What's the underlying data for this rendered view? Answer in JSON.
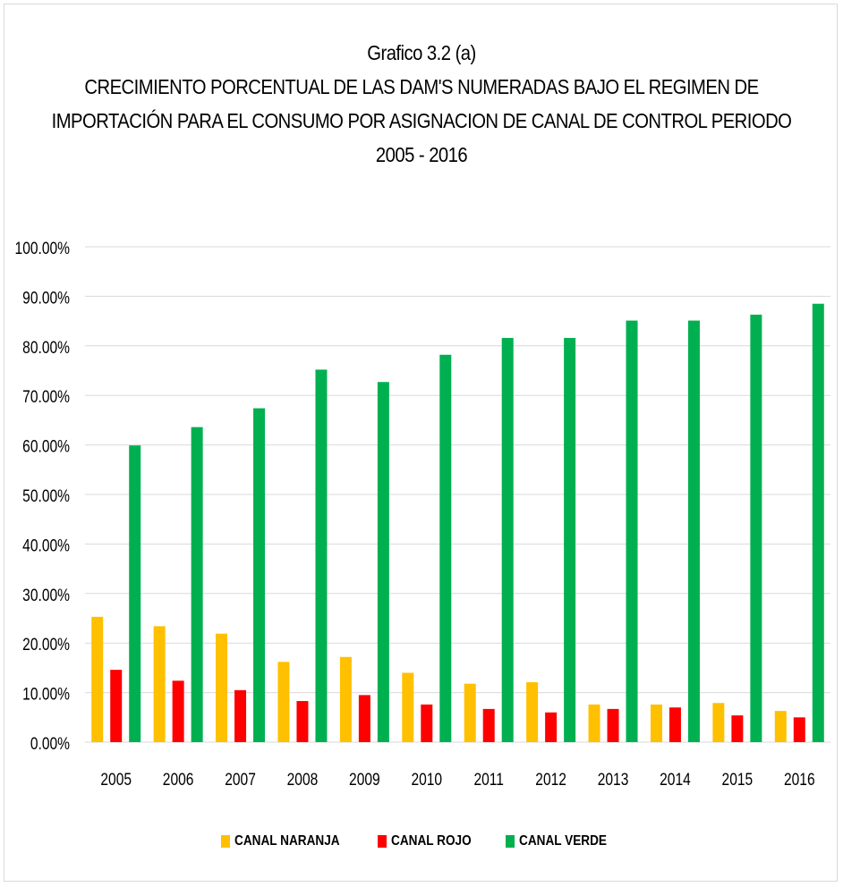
{
  "title": {
    "line1": "Grafico 3.2 (a)",
    "line2": "CRECIMIENTO PORCENTUAL DE LAS DAM'S NUMERADAS BAJO EL REGIMEN DE",
    "line3": "IMPORTACIÓN PARA EL CONSUMO POR ASIGNACION DE CANAL DE CONTROL PERIODO",
    "line4": "2005 - 2016"
  },
  "legend": {
    "position": "bottom",
    "items": [
      {
        "label": "CANAL NARANJA",
        "color": "#FFC000"
      },
      {
        "label": "CANAL ROJO",
        "color": "#FF0000"
      },
      {
        "label": "CANAL VERDE",
        "color": "#00B050"
      }
    ]
  },
  "chart_data": {
    "type": "bar",
    "categories": [
      "2005",
      "2006",
      "2007",
      "2008",
      "2009",
      "2010",
      "2011",
      "2012",
      "2013",
      "2014",
      "2015",
      "2016"
    ],
    "series": [
      {
        "name": "CANAL NARANJA",
        "color": "#FFC000",
        "values": [
          25.3,
          23.4,
          21.9,
          16.2,
          17.2,
          14.0,
          11.8,
          12.1,
          7.6,
          7.6,
          7.9,
          6.3
        ]
      },
      {
        "name": "CANAL ROJO",
        "color": "#FF0000",
        "values": [
          14.6,
          12.4,
          10.5,
          8.3,
          9.5,
          7.6,
          6.7,
          6.0,
          6.7,
          7.0,
          5.4,
          5.0
        ]
      },
      {
        "name": "CANAL VERDE",
        "color": "#00B050",
        "values": [
          59.9,
          63.6,
          67.4,
          75.2,
          72.7,
          78.2,
          81.6,
          81.6,
          85.1,
          85.1,
          86.3,
          88.5
        ]
      }
    ],
    "y_ticks": [
      "0.00%",
      "10.00%",
      "20.00%",
      "30.00%",
      "40.00%",
      "50.00%",
      "60.00%",
      "70.00%",
      "80.00%",
      "90.00%",
      "100.00%"
    ],
    "ylim": [
      0,
      100
    ],
    "grid": true,
    "gridline_color": "#d9d9d9"
  }
}
